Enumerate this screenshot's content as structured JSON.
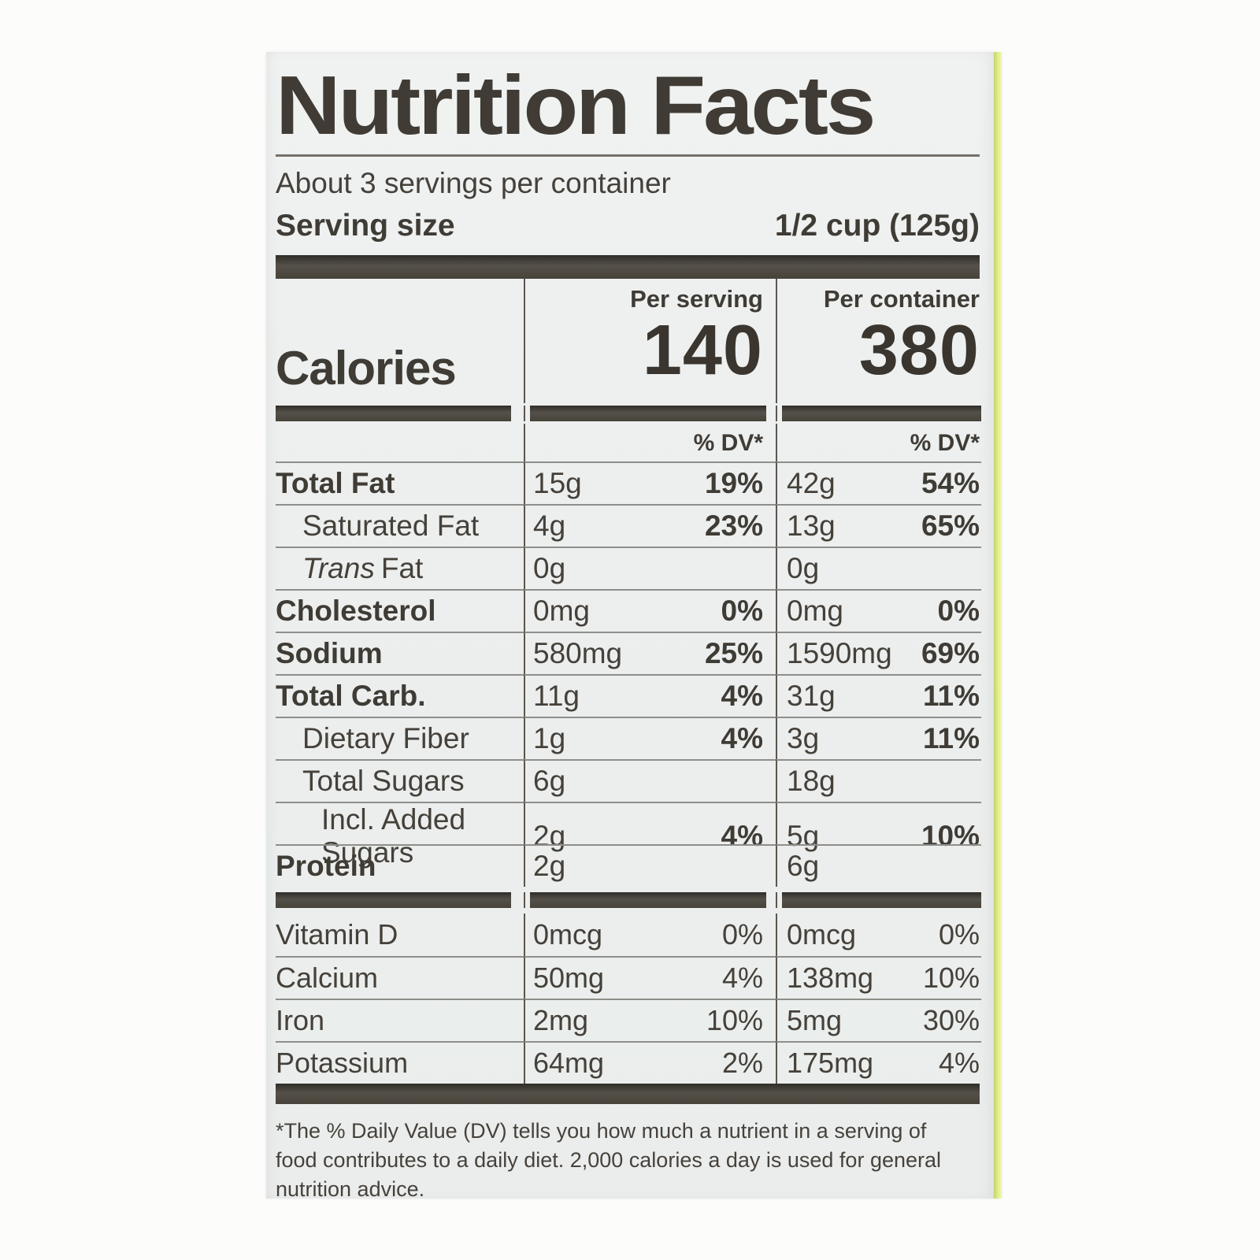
{
  "label": {
    "title": "Nutrition Facts",
    "servings_per_container": "About 3 servings per container",
    "serving_size_label": "Serving size",
    "serving_size_value": "1/2 cup (125g)",
    "calories": {
      "label": "Calories",
      "per_serving_header": "Per serving",
      "per_container_header": "Per container",
      "per_serving_value": "140",
      "per_container_value": "380"
    },
    "dv_header_serving": "% DV*",
    "dv_header_container": "% DV*",
    "nutrients": [
      {
        "name": "Total Fat",
        "serving_amount": "15g",
        "serving_dv": "19%",
        "container_amount": "42g",
        "container_dv": "54%"
      },
      {
        "name": "Saturated Fat",
        "serving_amount": "4g",
        "serving_dv": "23%",
        "container_amount": "13g",
        "container_dv": "65%"
      },
      {
        "name_italic": "Trans",
        "name_rest": "Fat",
        "serving_amount": "0g",
        "serving_dv": "",
        "container_amount": "0g",
        "container_dv": ""
      },
      {
        "name": "Cholesterol",
        "serving_amount": "0mg",
        "serving_dv": "0%",
        "container_amount": "0mg",
        "container_dv": "0%"
      },
      {
        "name": "Sodium",
        "serving_amount": "580mg",
        "serving_dv": "25%",
        "container_amount": "1590mg",
        "container_dv": "69%"
      },
      {
        "name": "Total Carb.",
        "serving_amount": "11g",
        "serving_dv": "4%",
        "container_amount": "31g",
        "container_dv": "11%"
      },
      {
        "name": "Dietary Fiber",
        "serving_amount": "1g",
        "serving_dv": "4%",
        "container_amount": "3g",
        "container_dv": "11%"
      },
      {
        "name": "Total Sugars",
        "serving_amount": "6g",
        "serving_dv": "",
        "container_amount": "18g",
        "container_dv": ""
      },
      {
        "name": "Incl. Added Sugars",
        "serving_amount": "2g",
        "serving_dv": "4%",
        "container_amount": "5g",
        "container_dv": "10%"
      },
      {
        "name": "Protein",
        "serving_amount": "2g",
        "serving_dv": "",
        "container_amount": "6g",
        "container_dv": ""
      }
    ],
    "vitamins": [
      {
        "name": "Vitamin D",
        "serving_amount": "0mcg",
        "serving_dv": "0%",
        "container_amount": "0mcg",
        "container_dv": "0%"
      },
      {
        "name": "Calcium",
        "serving_amount": "50mg",
        "serving_dv": "4%",
        "container_amount": "138mg",
        "container_dv": "10%"
      },
      {
        "name": "Iron",
        "serving_amount": "2mg",
        "serving_dv": "10%",
        "container_amount": "5mg",
        "container_dv": "30%"
      },
      {
        "name": "Potassium",
        "serving_amount": "64mg",
        "serving_dv": "2%",
        "container_amount": "175mg",
        "container_dv": "4%"
      }
    ],
    "footnote_lines": [
      "*The % Daily Value (DV) tells you how much a nutrient in a serving of",
      "food contributes to a daily diet. 2,000 calories a day is used for general",
      "nutrition advice."
    ]
  }
}
